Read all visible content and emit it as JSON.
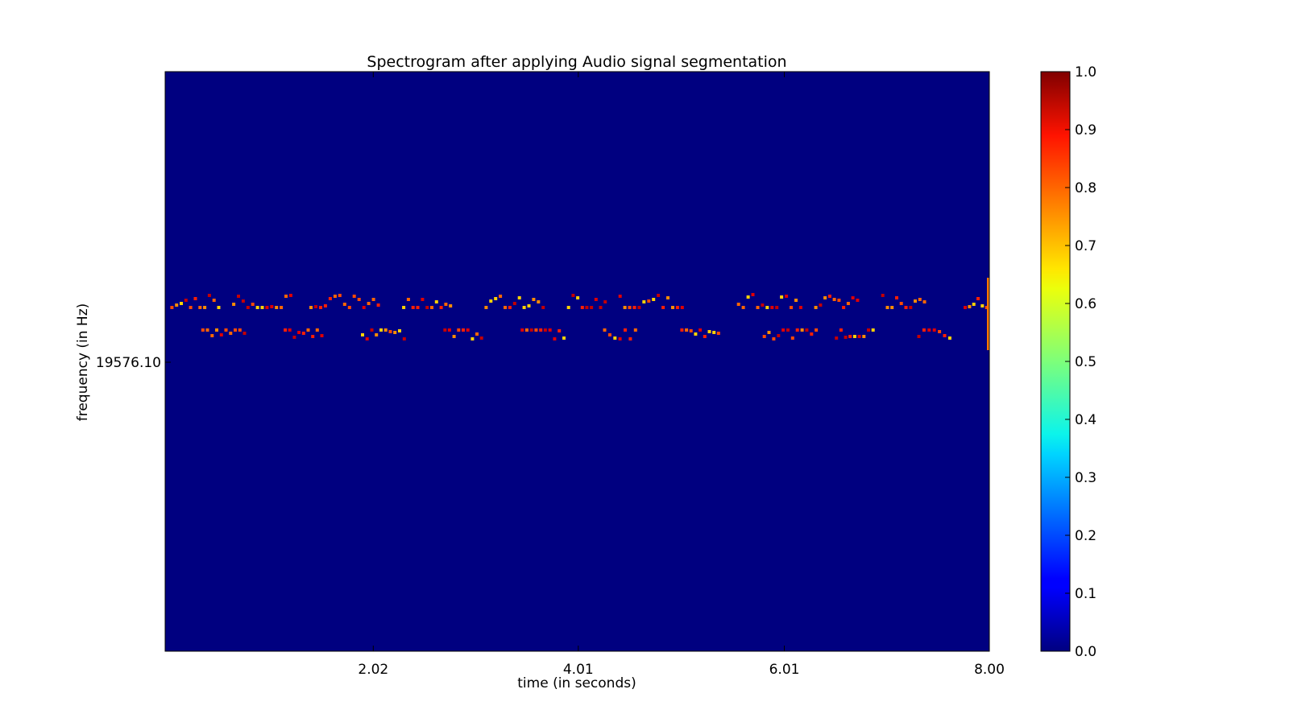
{
  "chart_data": {
    "type": "heatmap",
    "title": "Spectrogram after applying Audio signal segmentation",
    "xlabel": "time (in seconds)",
    "ylabel": "frequency (in Hz)",
    "xlim": [
      0,
      8.0
    ],
    "x_ticks": [
      {
        "value": 2.02,
        "label": "2.02"
      },
      {
        "value": 4.01,
        "label": "4.01"
      },
      {
        "value": 6.01,
        "label": "6.01"
      },
      {
        "value": 8.0,
        "label": "8.00"
      }
    ],
    "y_ticks": [
      {
        "label": "19576.10"
      }
    ],
    "colormap": "jet",
    "background_value": 0.0,
    "colorbar": {
      "range": [
        0.0,
        1.0
      ],
      "ticks": [
        "0.0",
        "0.1",
        "0.2",
        "0.3",
        "0.4",
        "0.5",
        "0.6",
        "0.7",
        "0.8",
        "0.9",
        "1.0"
      ]
    },
    "segments": [
      {
        "t_start": 0.05,
        "t_end": 0.55,
        "band": "upper"
      },
      {
        "t_start": 0.35,
        "t_end": 0.8,
        "band": "lower"
      },
      {
        "t_start": 0.65,
        "t_end": 1.25,
        "band": "upper"
      },
      {
        "t_start": 1.15,
        "t_end": 1.55,
        "band": "lower"
      },
      {
        "t_start": 1.4,
        "t_end": 2.1,
        "band": "upper"
      },
      {
        "t_start": 1.9,
        "t_end": 2.35,
        "band": "lower"
      },
      {
        "t_start": 2.3,
        "t_end": 2.8,
        "band": "upper"
      },
      {
        "t_start": 2.7,
        "t_end": 3.1,
        "band": "lower"
      },
      {
        "t_start": 3.1,
        "t_end": 3.7,
        "band": "upper"
      },
      {
        "t_start": 3.45,
        "t_end": 3.9,
        "band": "lower"
      },
      {
        "t_start": 3.9,
        "t_end": 4.3,
        "band": "upper"
      },
      {
        "t_start": 4.25,
        "t_end": 4.6,
        "band": "lower"
      },
      {
        "t_start": 4.4,
        "t_end": 5.05,
        "band": "upper"
      },
      {
        "t_start": 5.0,
        "t_end": 5.4,
        "band": "lower"
      },
      {
        "t_start": 5.55,
        "t_end": 6.2,
        "band": "upper"
      },
      {
        "t_start": 5.8,
        "t_end": 6.35,
        "band": "lower"
      },
      {
        "t_start": 6.3,
        "t_end": 6.75,
        "band": "upper"
      },
      {
        "t_start": 6.5,
        "t_end": 6.9,
        "band": "lower"
      },
      {
        "t_start": 6.95,
        "t_end": 7.4,
        "band": "upper"
      },
      {
        "t_start": 7.3,
        "t_end": 7.65,
        "band": "lower"
      },
      {
        "t_start": 7.75,
        "t_end": 8.0,
        "band": "upper"
      }
    ]
  }
}
